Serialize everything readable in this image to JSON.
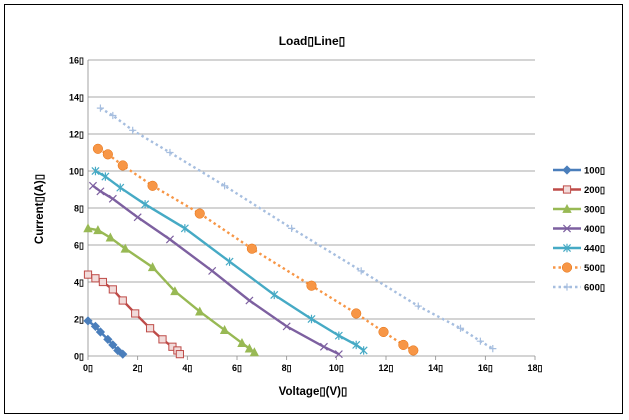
{
  "chart_data": {
    "type": "scatter",
    "title": "Load▯Line▯",
    "xlabel": "Voltage▯(V)▯",
    "ylabel": "Current▯(A)▯",
    "xlim": [
      0,
      18
    ],
    "ylim": [
      0,
      16
    ],
    "x_ticks": [
      "0▯",
      "2▯",
      "4▯",
      "6▯",
      "8▯",
      "10▯",
      "12▯",
      "14▯",
      "16▯",
      "18▯"
    ],
    "y_ticks": [
      "0▯",
      "2▯",
      "4▯",
      "6▯",
      "8▯",
      "10▯",
      "12▯",
      "14▯",
      "16▯"
    ],
    "grid": "horizontal",
    "legend_position": "right",
    "series": [
      {
        "name": "100▯",
        "color": "#4a7ebb",
        "marker": "diamond",
        "dash": false,
        "x": [
          0.0,
          0.3,
          0.5,
          0.8,
          1.0,
          1.2,
          1.4
        ],
        "y": [
          1.9,
          1.6,
          1.3,
          0.9,
          0.6,
          0.3,
          0.1
        ]
      },
      {
        "name": "200▯",
        "color": "#be4b48",
        "marker": "square",
        "dash": false,
        "x": [
          0.0,
          0.3,
          0.6,
          1.0,
          1.4,
          1.9,
          2.5,
          3.0,
          3.4,
          3.6,
          3.7
        ],
        "y": [
          4.4,
          4.2,
          4.0,
          3.6,
          3.0,
          2.3,
          1.5,
          0.9,
          0.5,
          0.3,
          0.1
        ]
      },
      {
        "name": "300▯",
        "color": "#98b954",
        "marker": "triangle",
        "dash": false,
        "x": [
          0.0,
          0.4,
          0.9,
          1.5,
          2.6,
          3.5,
          4.5,
          5.5,
          6.2,
          6.5,
          6.7
        ],
        "y": [
          6.9,
          6.8,
          6.4,
          5.8,
          4.8,
          3.5,
          2.4,
          1.4,
          0.7,
          0.4,
          0.2
        ]
      },
      {
        "name": "400▯",
        "color": "#7d60a0",
        "marker": "x",
        "dash": false,
        "x": [
          0.2,
          0.5,
          1.0,
          2.0,
          3.3,
          5.0,
          6.5,
          8.0,
          9.5,
          10.1
        ],
        "y": [
          9.2,
          8.9,
          8.5,
          7.5,
          6.3,
          4.6,
          3.0,
          1.6,
          0.5,
          0.1
        ]
      },
      {
        "name": "440▯",
        "color": "#46aac5",
        "marker": "asterisk",
        "dash": false,
        "x": [
          0.3,
          0.7,
          1.3,
          2.3,
          3.9,
          5.7,
          7.5,
          9.0,
          10.1,
          10.8,
          11.1
        ],
        "y": [
          10.0,
          9.7,
          9.1,
          8.2,
          6.9,
          5.1,
          3.3,
          2.0,
          1.1,
          0.6,
          0.3
        ]
      },
      {
        "name": "500▯",
        "color": "#f79646",
        "marker": "circle",
        "dash": true,
        "x": [
          0.4,
          0.8,
          1.4,
          2.6,
          4.5,
          6.6,
          9.0,
          10.8,
          11.9,
          12.7,
          13.1
        ],
        "y": [
          11.2,
          10.9,
          10.3,
          9.2,
          7.7,
          5.8,
          3.8,
          2.3,
          1.3,
          0.6,
          0.3
        ]
      },
      {
        "name": "600▯",
        "color": "#a6bedf",
        "marker": "plus",
        "dash": true,
        "x": [
          0.5,
          1.0,
          1.8,
          3.3,
          5.5,
          8.2,
          11.0,
          13.3,
          15.0,
          15.8,
          16.3
        ],
        "y": [
          13.4,
          13.0,
          12.2,
          11.0,
          9.2,
          6.9,
          4.6,
          2.7,
          1.5,
          0.8,
          0.4
        ]
      }
    ]
  }
}
